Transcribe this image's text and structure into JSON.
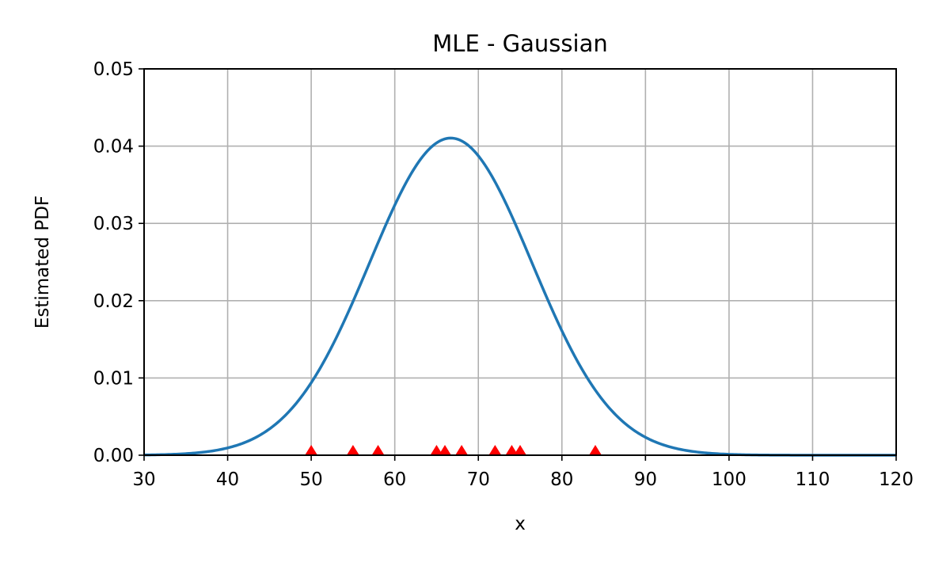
{
  "chart_data": {
    "type": "line",
    "title": "MLE - Gaussian",
    "xlabel": "x",
    "ylabel": "Estimated PDF",
    "xlim": [
      30,
      120
    ],
    "ylim": [
      0,
      0.05
    ],
    "xticks": [
      30,
      40,
      50,
      60,
      70,
      80,
      90,
      100,
      110,
      120
    ],
    "xtick_labels": [
      "30",
      "40",
      "50",
      "60",
      "70",
      "80",
      "90",
      "100",
      "110",
      "120"
    ],
    "yticks": [
      0,
      0.01,
      0.02,
      0.03,
      0.04,
      0.05
    ],
    "ytick_labels": [
      "0.00",
      "0.01",
      "0.02",
      "0.03",
      "0.04",
      "0.05"
    ],
    "grid": true,
    "curve": {
      "kind": "gaussian_pdf",
      "mean": 66.7,
      "std": 9.72,
      "color": "#1f77b4"
    },
    "samples": {
      "marker": "triangle",
      "color": "#ff0000",
      "x": [
        50,
        55,
        58,
        65,
        66,
        68,
        72,
        74,
        75,
        84
      ],
      "y": [
        0,
        0,
        0,
        0,
        0,
        0,
        0,
        0,
        0,
        0
      ]
    }
  }
}
